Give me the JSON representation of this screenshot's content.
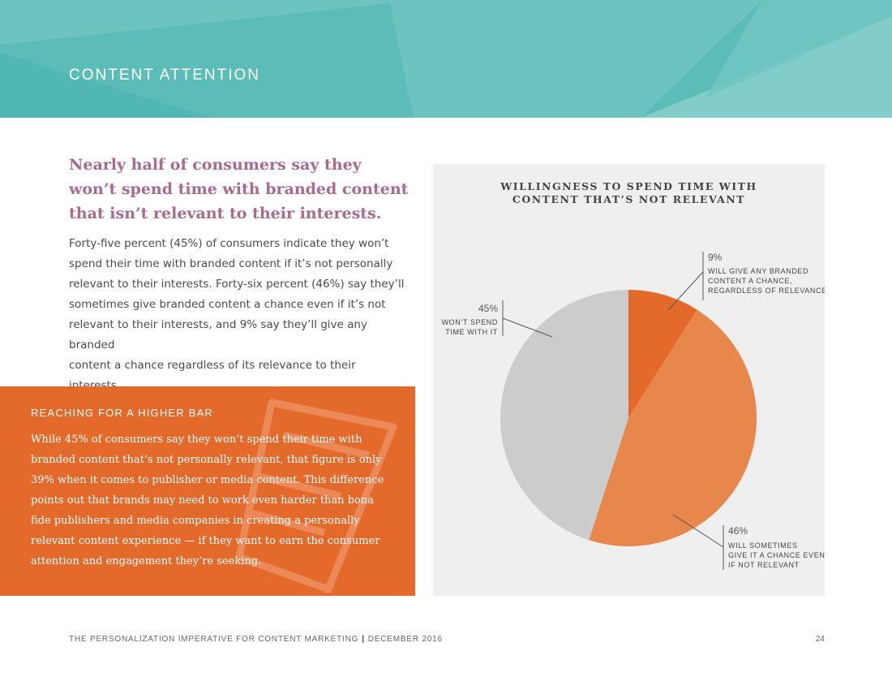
{
  "header": {
    "title": "CONTENT ATTENTION",
    "colors": {
      "base": "#5bbcb8",
      "light": "#7cc8c6",
      "dark": "#4eb5b1"
    }
  },
  "main": {
    "headline": "Nearly half of consumers say they won’t spend time with branded content that isn’t relevant to their interests.",
    "body_lines": [
      "Forty-five percent (45%) of consumers indicate they won’t",
      "spend their time with branded content if it’s not personally",
      "relevant to their interests. Forty-six percent (46%) say they’ll",
      "sometimes give branded content a chance even if it’s not",
      "relevant to their interests, and 9% say they’ll give any branded",
      "content a chance regardless of its relevance to their interests."
    ]
  },
  "callout": {
    "title": "REACHING FOR A HIGHER BAR",
    "lines": [
      "While 45% of consumers say they won’t spend their time with",
      "branded content that’s not personally relevant, that figure is only",
      "39% when it comes to publisher or media content. This difference",
      "points out that brands may need to work even harder than bona",
      "fide publishers and media companies in creating a personally",
      "relevant content experience — if they want to earn the consumer",
      "attention and engagement they’re seeking."
    ],
    "color": "#e46a2c"
  },
  "chart_data": {
    "type": "pie",
    "title_lines": [
      "WILLINGNESS TO SPEND TIME WITH",
      "CONTENT THAT’S NOT RELEVANT"
    ],
    "slices": [
      {
        "pct_label": "9%",
        "value": 9,
        "color": "#e46a2c",
        "label_lines": [
          "WILL GIVE ANY BRANDED",
          "CONTENT A CHANCE,",
          "REGARDLESS OF RELEVANCE"
        ]
      },
      {
        "pct_label": "46%",
        "value": 46,
        "color": "#e8874b",
        "label_lines": [
          "WILL SOMETIMES",
          "GIVE IT A CHANCE EVEN",
          "IF NOT RELEVANT"
        ]
      },
      {
        "pct_label": "45%",
        "value": 45,
        "color": "#cccccc",
        "label_lines": [
          "WON’T SPEND",
          "TIME WITH IT"
        ]
      }
    ],
    "background": "#efefef"
  },
  "footer": {
    "left": "THE PERSONALIZATION IMPERATIVE FOR CONTENT MARKETING",
    "date": "DECEMBER 2016",
    "page": "24"
  }
}
